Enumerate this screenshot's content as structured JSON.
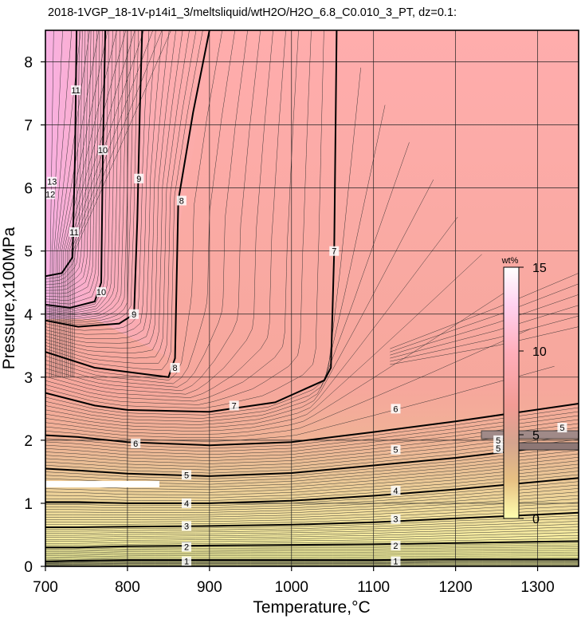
{
  "chart_data": {
    "type": "heatmap",
    "title": "2018-1VGP_18-1V-p14i1_3/meltsliquid/wtH2O/H2O_6.8_C0.010_3_PT, dz=0.1:",
    "xlabel": "Temperature,°C",
    "ylabel": "Pressure,x100MPa",
    "xlim": [
      700,
      1350
    ],
    "ylim": [
      0,
      8.5
    ],
    "x_ticks": [
      "700",
      "800",
      "900",
      "1000",
      "1100",
      "1200",
      "1300"
    ],
    "y_ticks": [
      "0",
      "1",
      "2",
      "3",
      "4",
      "5",
      "6",
      "7",
      "8"
    ],
    "grid": true,
    "colorbar": {
      "unit": "wt%",
      "range": [
        0,
        15
      ],
      "tick_labels": [
        "0",
        "5",
        "10",
        "15"
      ],
      "colors": [
        "#ffffb0",
        "#e7c183",
        "#d4a48e",
        "#f29b94",
        "#ffaeba",
        "#ffd2f0",
        "#ffffff"
      ]
    },
    "contour_labels": [
      "1",
      "1",
      "2",
      "2",
      "3",
      "3",
      "4",
      "4",
      "5",
      "5",
      "6",
      "6",
      "7",
      "7",
      "8",
      "8",
      "9",
      "9",
      "10",
      "10",
      "11",
      "11",
      "12",
      "13",
      "5",
      "5",
      "5"
    ],
    "contours": [
      {
        "level": 1,
        "points": [
          [
            700,
            0.08
          ],
          [
            740,
            0.09
          ],
          [
            800,
            0.1
          ],
          [
            900,
            0.1
          ],
          [
            1000,
            0.1
          ],
          [
            1100,
            0.1
          ],
          [
            1200,
            0.11
          ],
          [
            1350,
            0.11
          ]
        ]
      },
      {
        "level": 2,
        "points": [
          [
            700,
            0.3
          ],
          [
            740,
            0.3
          ],
          [
            800,
            0.32
          ],
          [
            900,
            0.33
          ],
          [
            1000,
            0.34
          ],
          [
            1100,
            0.35
          ],
          [
            1200,
            0.37
          ],
          [
            1350,
            0.4
          ]
        ]
      },
      {
        "level": 3,
        "points": [
          [
            700,
            0.62
          ],
          [
            740,
            0.62
          ],
          [
            800,
            0.63
          ],
          [
            900,
            0.64
          ],
          [
            1000,
            0.66
          ],
          [
            1100,
            0.7
          ],
          [
            1200,
            0.76
          ],
          [
            1350,
            0.85
          ]
        ]
      },
      {
        "level": 4,
        "points": [
          [
            700,
            1.02
          ],
          [
            740,
            1.02
          ],
          [
            800,
            1.0
          ],
          [
            900,
            1.0
          ],
          [
            1000,
            1.04
          ],
          [
            1100,
            1.12
          ],
          [
            1200,
            1.22
          ],
          [
            1350,
            1.4
          ]
        ]
      },
      {
        "level": 5,
        "points": [
          [
            700,
            1.55
          ],
          [
            740,
            1.52
          ],
          [
            800,
            1.47
          ],
          [
            900,
            1.43
          ],
          [
            1000,
            1.48
          ],
          [
            1100,
            1.6
          ],
          [
            1200,
            1.72
          ],
          [
            1350,
            1.95
          ]
        ]
      },
      {
        "level": 6,
        "points": [
          [
            700,
            2.08
          ],
          [
            740,
            2.05
          ],
          [
            800,
            1.97
          ],
          [
            900,
            1.92
          ],
          [
            1000,
            1.97
          ],
          [
            1100,
            2.13
          ],
          [
            1200,
            2.3
          ],
          [
            1350,
            2.58
          ]
        ]
      },
      {
        "level": 7,
        "points": [
          [
            700,
            2.75
          ],
          [
            760,
            2.55
          ],
          [
            800,
            2.48
          ],
          [
            900,
            2.45
          ],
          [
            980,
            2.6
          ],
          [
            1040,
            2.95
          ],
          [
            1048,
            3.15
          ],
          [
            1052,
            5.0
          ],
          [
            1055,
            8.5
          ]
        ]
      },
      {
        "level": 8,
        "points": [
          [
            700,
            3.4
          ],
          [
            760,
            3.15
          ],
          [
            820,
            3.05
          ],
          [
            850,
            3.0
          ],
          [
            858,
            3.3
          ],
          [
            862,
            5.8
          ],
          [
            880,
            7.2
          ],
          [
            900,
            8.5
          ]
        ]
      },
      {
        "level": 9,
        "points": [
          [
            700,
            3.9
          ],
          [
            740,
            3.8
          ],
          [
            790,
            3.85
          ],
          [
            808,
            4.0
          ],
          [
            812,
            5.5
          ],
          [
            815,
            7.2
          ],
          [
            818,
            8.5
          ]
        ]
      },
      {
        "level": 10,
        "points": [
          [
            700,
            4.15
          ],
          [
            730,
            4.1
          ],
          [
            760,
            4.2
          ],
          [
            768,
            4.5
          ],
          [
            770,
            6.5
          ],
          [
            773,
            8.5
          ]
        ]
      },
      {
        "level": 11,
        "points": [
          [
            700,
            4.6
          ],
          [
            720,
            4.65
          ],
          [
            733,
            4.9
          ],
          [
            736,
            6.5
          ],
          [
            738,
            8.5
          ]
        ]
      }
    ],
    "annotations": [
      {
        "type": "colorbar-bar",
        "x": [
          1242,
          1275
        ],
        "y": [
          0.75,
          4.75
        ]
      }
    ]
  }
}
